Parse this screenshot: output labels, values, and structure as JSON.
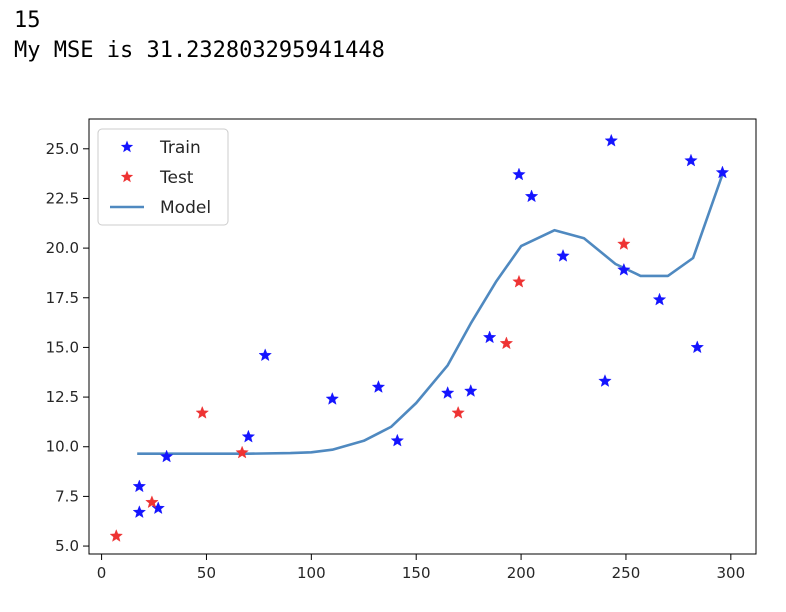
{
  "output": {
    "line1": "15",
    "line2": "My MSE is 31.232803295941448"
  },
  "chart_data": {
    "type": "scatter",
    "xlim": [
      -6,
      312
    ],
    "ylim": [
      4.6,
      26.5
    ],
    "xticks": [
      0,
      50,
      100,
      150,
      200,
      250,
      300
    ],
    "yticks": [
      5.0,
      7.5,
      10.0,
      12.5,
      15.0,
      17.5,
      20.0,
      22.5,
      25.0
    ],
    "legend_position": "upper-left",
    "grid": false,
    "series": [
      {
        "name": "Train",
        "kind": "scatter",
        "marker": "star",
        "color": "#1414ff",
        "x": [
          18,
          18,
          27,
          31,
          70,
          78,
          110,
          132,
          141,
          165,
          176,
          185,
          199,
          205,
          220,
          240,
          243,
          249,
          266,
          281,
          284,
          296
        ],
        "y": [
          8.0,
          6.7,
          6.9,
          9.5,
          10.5,
          14.6,
          12.4,
          13.0,
          10.3,
          12.7,
          12.8,
          15.5,
          23.7,
          22.6,
          19.6,
          13.3,
          25.4,
          18.9,
          17.4,
          24.4,
          15.0,
          23.8
        ]
      },
      {
        "name": "Test",
        "kind": "scatter",
        "marker": "star",
        "color": "#ee3333",
        "x": [
          7,
          24,
          48,
          67,
          170,
          193,
          199,
          249
        ],
        "y": [
          5.5,
          7.2,
          11.7,
          9.7,
          11.7,
          15.2,
          18.3,
          20.2
        ]
      },
      {
        "name": "Model",
        "kind": "line",
        "color": "#4f89c0",
        "x": [
          17,
          30,
          50,
          70,
          90,
          100,
          110,
          125,
          138,
          150,
          165,
          176,
          188,
          200,
          216,
          230,
          245,
          257,
          270,
          282,
          296
        ],
        "y": [
          9.65,
          9.65,
          9.65,
          9.65,
          9.68,
          9.72,
          9.85,
          10.3,
          11.0,
          12.2,
          14.1,
          16.2,
          18.3,
          20.1,
          20.9,
          20.5,
          19.2,
          18.6,
          18.6,
          19.5,
          23.7
        ]
      }
    ]
  }
}
